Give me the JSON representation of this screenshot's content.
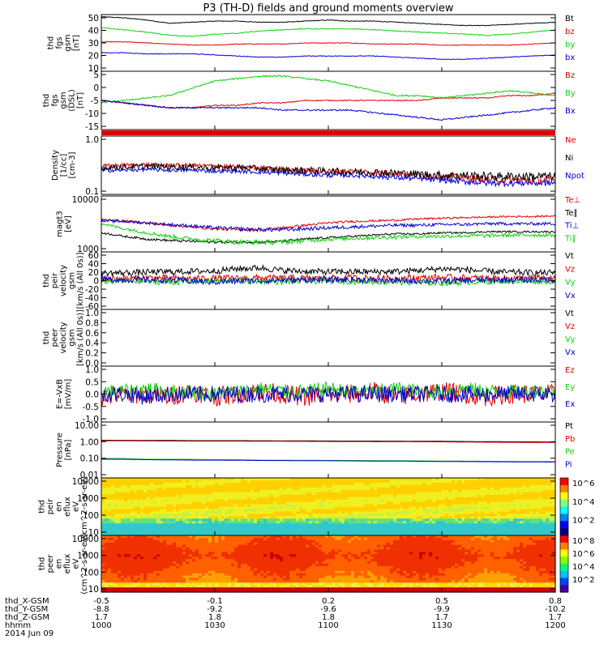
{
  "figure": {
    "title": "P3 (TH-D) fields and ground moments overview",
    "date_label": "2014 Jun 09"
  },
  "colors": {
    "black": "#000000",
    "red": "#e00000",
    "green": "#10d010",
    "blue": "#0000d0"
  },
  "colorbar_labels": [
    "10^6",
    "10^4",
    "10^2"
  ],
  "xaxis": {
    "times": [
      "1000",
      "1030",
      "1100",
      "1130",
      "1200"
    ],
    "rows": [
      {
        "label": "thd_X-GSM",
        "values": [
          "-0.5",
          "-0.1",
          "0.2",
          "0.5",
          "0.8"
        ]
      },
      {
        "label": "thd_Y-GSM",
        "values": [
          "-8.8",
          "-9.2",
          "-9.6",
          "-9.9",
          "-10.2"
        ]
      },
      {
        "label": "thd_Z-GSM",
        "values": [
          "1.7",
          "1.8",
          "1.8",
          "1.7",
          "1.7"
        ]
      },
      {
        "label": "hhmm",
        "values": [
          "1000",
          "1030",
          "1100",
          "1130",
          "1200"
        ]
      }
    ]
  },
  "chart_data": [
    {
      "type": "line",
      "ylabel": [
        "thd",
        "fgs",
        "gsm",
        "[nT]"
      ],
      "ylim": [
        0,
        52
      ],
      "yticks": [
        "50",
        "40",
        "30",
        "20",
        "10"
      ],
      "series": [
        {
          "name": "Bt",
          "color": "black",
          "values": [
            50,
            49,
            47,
            44,
            45,
            46,
            46,
            45,
            45,
            46,
            47,
            46,
            46,
            45,
            44,
            43,
            42,
            42,
            43,
            44,
            45
          ],
          "noise": 0.3
        },
        {
          "name": "bz",
          "color": "red",
          "values": [
            27,
            27,
            26,
            25,
            24,
            24,
            25,
            25,
            25,
            26,
            26,
            26,
            25,
            25,
            25,
            24,
            24,
            24,
            24,
            25,
            26
          ],
          "noise": 0.3
        },
        {
          "name": "by",
          "color": "green",
          "values": [
            40,
            38,
            36,
            33,
            32,
            34,
            35,
            37,
            38,
            39,
            39,
            39,
            38,
            37,
            36,
            35,
            34,
            33,
            34,
            36,
            38
          ],
          "noise": 0.4
        },
        {
          "name": "bx",
          "color": "blue",
          "values": [
            17,
            17,
            16,
            16,
            16,
            15,
            14,
            13,
            13,
            14,
            14,
            14,
            14,
            13,
            12,
            11,
            11,
            12,
            13,
            14,
            15
          ],
          "noise": 0.3
        }
      ]
    },
    {
      "type": "line",
      "ylabel": [
        "thd",
        "fgs",
        "gsm",
        "(DSL)",
        "[nT]"
      ],
      "ylim": [
        -18,
        6
      ],
      "yticks": [
        "5",
        "0",
        "-5",
        "-10",
        "-15"
      ],
      "series": [
        {
          "name": "Bz",
          "color": "red",
          "values": [
            -6,
            -7,
            -8,
            -9,
            -9,
            -8,
            -8,
            -7,
            -7,
            -6,
            -6,
            -6,
            -6,
            -6,
            -6,
            -5,
            -5,
            -5,
            -4,
            -4,
            -3
          ],
          "noise": 0.2
        },
        {
          "name": "By",
          "color": "green",
          "values": [
            -7,
            -6,
            -5,
            -4,
            -1,
            2,
            3,
            4,
            4,
            3,
            2,
            0,
            -2,
            -4,
            -4,
            -5,
            -4,
            -3,
            -2,
            -3,
            -4
          ],
          "noise": 0.3
        },
        {
          "name": "Bx",
          "color": "blue",
          "values": [
            -6,
            -7,
            -8,
            -9,
            -9,
            -9,
            -9,
            -9,
            -10,
            -10,
            -10,
            -10,
            -11,
            -12,
            -13,
            -14,
            -13,
            -12,
            -11,
            -10,
            -9
          ],
          "noise": 0.3
        }
      ]
    },
    {
      "type": "line",
      "ylabel": [
        "Density",
        "[1/cc]",
        "[cm-3]"
      ],
      "yscale": "log",
      "ylim": [
        0.1,
        1.1
      ],
      "yticks": [
        "1.0",
        "0.1"
      ],
      "series": [
        {
          "name": "Ne",
          "color": "red",
          "values": [
            0.32,
            0.33,
            0.34,
            0.33,
            0.33,
            0.32,
            0.31,
            0.3,
            0.28,
            0.27,
            0.26,
            0.26,
            0.25,
            0.24,
            0.22,
            0.21,
            0.2,
            0.19,
            0.18,
            0.18,
            0.18
          ],
          "noise": 0.03
        },
        {
          "name": "Ni",
          "color": "black",
          "values": [
            0.3,
            0.31,
            0.32,
            0.31,
            0.31,
            0.3,
            0.3,
            0.29,
            0.27,
            0.27,
            0.26,
            0.25,
            0.25,
            0.24,
            0.23,
            0.22,
            0.22,
            0.21,
            0.21,
            0.21,
            0.21
          ],
          "noise": 0.04
        },
        {
          "name": "Npot",
          "color": "blue",
          "values": [
            0.27,
            0.27,
            0.28,
            0.27,
            0.27,
            0.26,
            0.26,
            0.25,
            0.24,
            0.23,
            0.22,
            0.22,
            0.21,
            0.2,
            0.19,
            0.18,
            0.17,
            0.16,
            0.16,
            0.16,
            0.16
          ],
          "noise": 0.02
        }
      ]
    },
    {
      "type": "line",
      "ylabel": [
        "magt3",
        "[eV]"
      ],
      "yscale": "log",
      "ylim": [
        1000,
        10000
      ],
      "yticks": [
        "10000",
        "1000"
      ],
      "series": [
        {
          "name": "Te⊥",
          "color": "red",
          "values": [
            3800,
            3600,
            3300,
            3000,
            2800,
            2600,
            2500,
            2500,
            2700,
            3000,
            3300,
            3500,
            3600,
            3700,
            3900,
            4000,
            4100,
            4200,
            4300,
            4300,
            4400
          ],
          "noise": 150
        },
        {
          "name": "Te∥",
          "color": "black",
          "values": [
            2200,
            1900,
            1700,
            1600,
            1550,
            1500,
            1500,
            1500,
            1550,
            1700,
            1800,
            1900,
            2000,
            2100,
            2100,
            2200,
            2200,
            2300,
            2300,
            2300,
            2300
          ],
          "noise": 80
        },
        {
          "name": "Ti⊥",
          "color": "blue",
          "values": [
            3600,
            3500,
            3300,
            3100,
            2900,
            2700,
            2600,
            2500,
            2500,
            2600,
            2700,
            2800,
            2900,
            3000,
            3000,
            3100,
            3100,
            3200,
            3200,
            3200,
            3200
          ],
          "noise": 200
        },
        {
          "name": "Ti∥",
          "color": "green",
          "values": [
            3200,
            2600,
            2200,
            1900,
            1700,
            1600,
            1500,
            1500,
            1500,
            1600,
            1700,
            1750,
            1800,
            1850,
            1900,
            1900,
            1950,
            1950,
            2000,
            2000,
            2000
          ],
          "noise": 150
        }
      ]
    },
    {
      "type": "line",
      "ylabel": [
        "thd",
        "peir",
        "velocity",
        "gsm",
        "[km/s (All 0s)]"
      ],
      "ylim": [
        -70,
        60
      ],
      "yticks": [
        "60",
        "40",
        "20",
        "0",
        "-20",
        "-40",
        "-60"
      ],
      "series": [
        {
          "name": "Vt",
          "color": "black",
          "values": [
            12,
            13,
            14,
            15,
            16,
            17,
            22,
            24,
            18,
            16,
            15,
            15,
            15,
            16,
            18,
            22,
            20,
            16,
            14,
            13,
            13
          ],
          "noise": 7
        },
        {
          "name": "Vz",
          "color": "red",
          "values": [
            0,
            0,
            1,
            0,
            -1,
            0,
            0,
            1,
            0,
            0,
            0,
            1,
            0,
            0,
            1,
            2,
            1,
            0,
            0,
            0,
            0
          ],
          "noise": 8
        },
        {
          "name": "Vy",
          "color": "green",
          "values": [
            -5,
            -6,
            -7,
            -8,
            -7,
            -6,
            -5,
            -6,
            -7,
            -6,
            -5,
            -6,
            -7,
            -8,
            -9,
            -10,
            -8,
            -7,
            -6,
            -6,
            -6
          ],
          "noise": 7
        },
        {
          "name": "Vx",
          "color": "blue",
          "values": [
            -2,
            -3,
            -3,
            -4,
            -6,
            -8,
            -6,
            -5,
            -4,
            -3,
            -3,
            -3,
            -4,
            -5,
            -6,
            -6,
            -5,
            -4,
            -3,
            -3,
            -3
          ],
          "noise": 7
        }
      ]
    },
    {
      "type": "line",
      "ylabel": [
        "thd",
        "peer",
        "velocity",
        "gsm",
        "[km/s (All 0s)]"
      ],
      "ylim": [
        0,
        1
      ],
      "yticks": [
        "1.0",
        "0.8",
        "0.6",
        "0.4",
        "0.2",
        "0.0"
      ],
      "series": [
        {
          "name": "Vt",
          "color": "black",
          "values": []
        },
        {
          "name": "Vz",
          "color": "red",
          "values": []
        },
        {
          "name": "Vy",
          "color": "green",
          "values": []
        },
        {
          "name": "Vx",
          "color": "blue",
          "values": []
        }
      ]
    },
    {
      "type": "line",
      "ylabel": [
        "E=-VxB",
        "[mV/m]"
      ],
      "ylim": [
        -1.0,
        1.0
      ],
      "yticks": [
        "1.0",
        "0.5",
        "0.0",
        "-0.5",
        "-1.0"
      ],
      "series": [
        {
          "name": "Ez",
          "color": "red",
          "values": [
            -0.1,
            0,
            0,
            -0.1,
            0.1,
            -0.1,
            0,
            0.1,
            0,
            -0.1,
            0,
            0,
            0.1,
            -0.1,
            0,
            0.1,
            0,
            -0.1,
            0,
            0,
            0
          ],
          "noise": 0.35
        },
        {
          "name": "Ey",
          "color": "green",
          "values": [
            0.1,
            0.1,
            0.2,
            0.1,
            0.1,
            0,
            0.1,
            0.2,
            0.1,
            0.1,
            0.2,
            0.1,
            0.1,
            0.2,
            0.1,
            0.1,
            0.2,
            0.1,
            0.1,
            0.1,
            0.1
          ],
          "noise": 0.25
        },
        {
          "name": "Ex",
          "color": "blue",
          "values": [
            0,
            0,
            -0.1,
            0,
            0,
            0,
            0,
            0,
            0,
            0,
            0,
            0,
            0,
            0,
            0,
            0,
            0,
            0,
            0,
            0,
            0
          ],
          "noise": 0.3
        }
      ]
    },
    {
      "type": "line",
      "ylabel": [
        "Pressure",
        "[nPa]"
      ],
      "yscale": "log",
      "ylim": [
        0.01,
        10
      ],
      "yticks": [
        "10.00",
        "1.00",
        "0.10",
        "0.01"
      ],
      "series": [
        {
          "name": "Pt",
          "color": "black",
          "values": [
            1.05,
            1.04,
            1.03,
            1.02,
            1.0,
            1.0,
            1.0,
            0.99,
            0.98,
            0.97,
            0.96,
            0.95,
            0.95,
            0.94,
            0.93,
            0.92,
            0.9,
            0.88,
            0.87,
            0.86,
            0.85
          ]
        },
        {
          "name": "Pb",
          "color": "red",
          "values": [
            0.98,
            0.97,
            0.96,
            0.95,
            0.94,
            0.94,
            0.94,
            0.93,
            0.92,
            0.91,
            0.9,
            0.9,
            0.89,
            0.88,
            0.87,
            0.86,
            0.84,
            0.82,
            0.81,
            0.8,
            0.8
          ]
        },
        {
          "name": "Pe",
          "color": "green",
          "values": [
            0.11,
            0.11,
            0.1,
            0.1,
            0.1,
            0.095,
            0.095,
            0.09,
            0.09,
            0.088,
            0.087,
            0.086,
            0.085,
            0.084,
            0.082,
            0.08,
            0.079,
            0.078,
            0.077,
            0.076,
            0.075
          ]
        },
        {
          "name": "Pi",
          "color": "blue",
          "values": [
            0.1,
            0.1,
            0.095,
            0.093,
            0.09,
            0.09,
            0.088,
            0.086,
            0.085,
            0.084,
            0.083,
            0.082,
            0.08,
            0.08,
            0.078,
            0.076,
            0.075,
            0.074,
            0.073,
            0.072,
            0.071
          ]
        }
      ]
    },
    {
      "type": "heatmap",
      "ylabel": [
        "thd",
        "peir",
        "en",
        "eflux",
        "eV",
        "(cm^2-s-sr-eV)"
      ],
      "yscale": "log",
      "ylim": [
        10,
        20000
      ],
      "yticks": [
        "10000",
        "1000",
        "100",
        "10"
      ],
      "zlabels": [
        "10^6",
        "10^4",
        "10^2"
      ]
    },
    {
      "type": "heatmap",
      "ylabel": [
        "thd",
        "peer",
        "en",
        "eflux",
        "eV",
        "(cm^2-s-sr-eV)"
      ],
      "yscale": "log",
      "ylim": [
        8,
        20000
      ],
      "yticks": [
        "10000",
        "1000",
        "100",
        "10"
      ],
      "zlabels": [
        "10^8",
        "10^6",
        "10^4",
        "10^2"
      ]
    }
  ]
}
